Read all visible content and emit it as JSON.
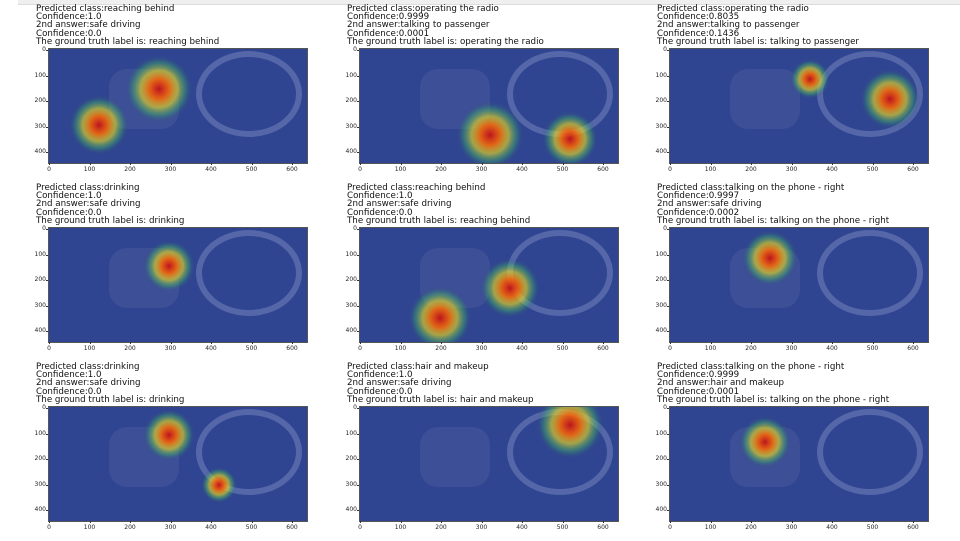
{
  "axis": {
    "y_ticks": [
      "0",
      "100",
      "200",
      "300",
      "400"
    ],
    "x_ticks": [
      "0",
      "100",
      "200",
      "300",
      "400",
      "500",
      "600"
    ]
  },
  "panels": [
    {
      "lines": [
        "Predicted class:reaching behind",
        "Confidence:1.0",
        "2nd answer:safe driving",
        "Confidence:0.0",
        "The ground truth label is: reaching behind"
      ]
    },
    {
      "lines": [
        "Predicted class:operating the radio",
        "Confidence:0.9999",
        "2nd answer:talking to passenger",
        "Confidence:0.0001",
        "The ground truth label is: operating the radio"
      ]
    },
    {
      "lines": [
        "Predicted class:operating the radio",
        "Confidence:0.8035",
        "2nd answer:talking to passenger",
        "Confidence:0.1436",
        "The ground truth label is: talking to passenger"
      ]
    },
    {
      "lines": [
        "Predicted class:drinking",
        "Confidence:1.0",
        "2nd answer:safe driving",
        "Confidence:0.0",
        "The ground truth label is: drinking"
      ]
    },
    {
      "lines": [
        "Predicted class:reaching behind",
        "Confidence:1.0",
        "2nd answer:safe driving",
        "Confidence:0.0",
        "The ground truth label is: reaching behind"
      ]
    },
    {
      "lines": [
        "Predicted class:talking on the phone - right",
        "Confidence:0.9997",
        "2nd answer:safe driving",
        "Confidence:0.0002",
        "The ground truth label is: talking on the phone - right"
      ]
    },
    {
      "lines": [
        "Predicted class:drinking",
        "Confidence:1.0",
        "2nd answer:safe driving",
        "Confidence:0.0",
        "The ground truth label is: drinking"
      ]
    },
    {
      "lines": [
        "Predicted class:hair and makeup",
        "Confidence:1.0",
        "2nd answer:safe driving",
        "Confidence:0.0",
        "The ground truth label is: hair and makeup"
      ]
    },
    {
      "lines": [
        "Predicted class:talking on the phone - right",
        "Confidence:0.9999",
        "2nd answer:hair and makeup",
        "Confidence:0.0001",
        "The ground truth label is: talking on the phone - right"
      ]
    }
  ]
}
